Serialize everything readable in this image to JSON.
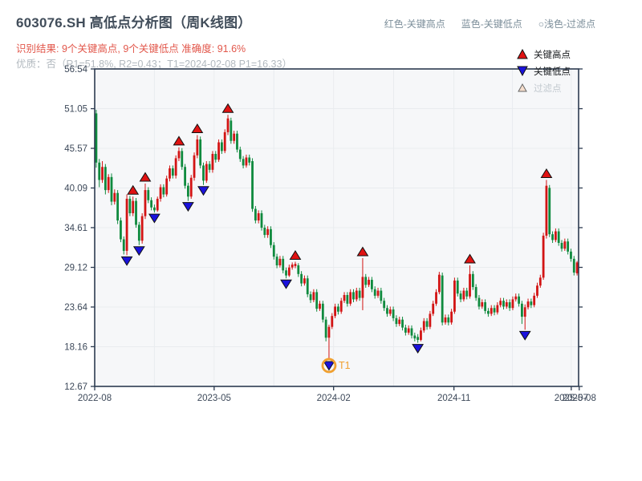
{
  "header": {
    "title": "603076.SH 高低点分析图（周K线图）",
    "note_high": "红色-关键高点",
    "note_low": "蓝色-关键低点",
    "note_filter": "○浅色-过滤点",
    "result_line": "识别结果: 9个关键高点, 9个关键低点  准确度: 91.6%",
    "quality_line": "优质：否（R1=51.8%, R2=0.43；T1=2024-02-08 P1=16.33）"
  },
  "chart_data": {
    "type": "candlestick",
    "symbol": "603076.SH",
    "period": "周K线",
    "ylim": [
      12.67,
      56.54
    ],
    "y_tick_labels": [
      "56.54",
      "51.05",
      "45.57",
      "40.09",
      "34.61",
      "29.12",
      "23.64",
      "18.16",
      "12.67"
    ],
    "x_ticks": [
      {
        "label": "2022-08",
        "week": 0
      },
      {
        "label": "2023-05",
        "week": 39
      },
      {
        "label": "2024-02",
        "week": 78
      },
      {
        "label": "2024-11",
        "week": 117.3
      },
      {
        "label": "2025-07",
        "week": 155.6
      },
      {
        "label": "2025-08",
        "week": 158.2
      }
    ],
    "weeks_total": 158,
    "grid_weeks": [
      19.5,
      39,
      58.5,
      78,
      97.6,
      117.3,
      136.4,
      155.6
    ],
    "candles": [
      [
        50.4,
        50.9,
        42.9,
        43.6
      ],
      [
        43.6,
        44.1,
        40.2,
        41.2
      ],
      [
        41.2,
        43.8,
        40.8,
        43.0
      ],
      [
        43.0,
        43.4,
        39.2,
        39.8
      ],
      [
        39.8,
        42.0,
        39.4,
        41.6
      ],
      [
        41.6,
        42.1,
        37.7,
        38.2
      ],
      [
        38.2,
        39.9,
        37.8,
        39.4
      ],
      [
        39.4,
        39.8,
        35.1,
        35.6
      ],
      [
        35.6,
        36.0,
        32.6,
        33.0
      ],
      [
        33.0,
        33.4,
        30.9,
        31.4
      ],
      [
        31.4,
        39.2,
        30.8,
        38.6
      ],
      [
        38.6,
        39.0,
        36.2,
        36.6
      ],
      [
        36.6,
        38.9,
        36.2,
        38.3
      ],
      [
        38.3,
        38.7,
        34.6,
        35.0
      ],
      [
        35.0,
        35.4,
        32.2,
        32.8
      ],
      [
        32.8,
        36.6,
        32.4,
        36.2
      ],
      [
        36.2,
        40.7,
        35.8,
        39.8
      ],
      [
        39.8,
        40.2,
        38.0,
        38.4
      ],
      [
        38.4,
        38.8,
        37.0,
        37.4
      ],
      [
        37.4,
        37.8,
        36.7,
        37.0
      ],
      [
        37.0,
        38.9,
        36.8,
        38.6
      ],
      [
        38.6,
        40.6,
        38.2,
        40.2
      ],
      [
        40.2,
        40.6,
        38.8,
        39.2
      ],
      [
        39.2,
        41.8,
        38.9,
        41.4
      ],
      [
        41.4,
        43.2,
        41.0,
        42.8
      ],
      [
        42.8,
        43.2,
        41.4,
        41.8
      ],
      [
        41.8,
        44.6,
        41.4,
        44.2
      ],
      [
        44.2,
        45.7,
        43.8,
        45.2
      ],
      [
        45.2,
        45.6,
        42.6,
        43.0
      ],
      [
        43.0,
        43.4,
        40.0,
        40.4
      ],
      [
        40.4,
        40.8,
        38.3,
        38.9
      ],
      [
        38.9,
        41.9,
        38.6,
        41.5
      ],
      [
        41.5,
        45.0,
        41.1,
        44.6
      ],
      [
        44.6,
        47.4,
        44.2,
        46.8
      ],
      [
        46.8,
        47.2,
        42.8,
        43.2
      ],
      [
        43.2,
        43.6,
        40.5,
        41.1
      ],
      [
        41.1,
        43.8,
        40.8,
        43.4
      ],
      [
        43.4,
        43.8,
        42.2,
        42.6
      ],
      [
        42.6,
        45.2,
        42.2,
        44.8
      ],
      [
        44.8,
        45.2,
        43.6,
        44.0
      ],
      [
        44.0,
        46.8,
        43.7,
        46.4
      ],
      [
        46.4,
        46.8,
        44.8,
        45.2
      ],
      [
        45.2,
        48.2,
        44.9,
        47.8
      ],
      [
        47.8,
        50.2,
        47.4,
        49.7
      ],
      [
        49.4,
        49.8,
        46.2,
        46.6
      ],
      [
        46.6,
        48.0,
        46.2,
        47.6
      ],
      [
        47.6,
        48.0,
        45.0,
        45.4
      ],
      [
        45.4,
        45.8,
        43.7,
        44.1
      ],
      [
        44.1,
        44.5,
        42.8,
        43.2
      ],
      [
        43.2,
        44.7,
        42.9,
        44.3
      ],
      [
        44.3,
        44.7,
        43.2,
        43.6
      ],
      [
        43.8,
        44.2,
        36.8,
        37.2
      ],
      [
        37.2,
        37.6,
        35.2,
        35.6
      ],
      [
        35.6,
        37.0,
        35.2,
        36.6
      ],
      [
        36.6,
        37.0,
        34.2,
        34.6
      ],
      [
        34.6,
        35.0,
        33.2,
        33.6
      ],
      [
        33.6,
        34.8,
        33.2,
        34.4
      ],
      [
        34.4,
        34.8,
        31.8,
        32.2
      ],
      [
        32.2,
        32.6,
        30.2,
        30.6
      ],
      [
        30.6,
        31.0,
        29.0,
        29.4
      ],
      [
        29.4,
        30.7,
        29.1,
        30.3
      ],
      [
        30.3,
        30.7,
        28.3,
        28.7
      ],
      [
        28.7,
        29.1,
        27.6,
        28.0
      ],
      [
        28.0,
        29.5,
        27.8,
        29.1
      ],
      [
        29.1,
        29.8,
        28.8,
        29.5
      ],
      [
        29.3,
        29.9,
        29.0,
        29.6
      ],
      [
        29.4,
        29.7,
        27.8,
        28.2
      ],
      [
        28.2,
        28.6,
        26.5,
        26.9
      ],
      [
        26.9,
        28.0,
        26.6,
        27.6
      ],
      [
        27.6,
        28.0,
        25.0,
        25.4
      ],
      [
        25.4,
        25.8,
        24.2,
        24.6
      ],
      [
        24.6,
        26.1,
        24.3,
        25.7
      ],
      [
        25.7,
        26.1,
        23.0,
        23.4
      ],
      [
        23.4,
        24.5,
        23.1,
        24.1
      ],
      [
        24.1,
        24.5,
        21.5,
        21.9
      ],
      [
        21.9,
        22.3,
        18.9,
        19.4
      ],
      [
        19.4,
        21.2,
        16.33,
        20.9
      ],
      [
        20.9,
        22.8,
        20.6,
        22.4
      ],
      [
        22.4,
        24.1,
        22.1,
        23.7
      ],
      [
        23.7,
        24.1,
        22.6,
        23.0
      ],
      [
        23.0,
        24.9,
        22.7,
        24.5
      ],
      [
        24.5,
        25.7,
        24.2,
        25.3
      ],
      [
        25.3,
        25.7,
        23.7,
        24.1
      ],
      [
        24.1,
        26.1,
        23.8,
        25.7
      ],
      [
        25.7,
        26.1,
        24.3,
        24.7
      ],
      [
        24.7,
        26.3,
        24.4,
        25.9
      ],
      [
        25.9,
        26.3,
        24.5,
        24.9
      ],
      [
        24.9,
        30.4,
        23.2,
        27.8
      ],
      [
        27.8,
        28.2,
        26.3,
        26.7
      ],
      [
        26.7,
        27.8,
        26.4,
        27.4
      ],
      [
        27.4,
        27.8,
        25.7,
        26.1
      ],
      [
        26.1,
        26.5,
        24.8,
        25.2
      ],
      [
        25.2,
        26.3,
        24.9,
        25.9
      ],
      [
        25.9,
        26.3,
        24.1,
        24.5
      ],
      [
        24.5,
        24.9,
        23.1,
        23.5
      ],
      [
        23.5,
        23.9,
        22.3,
        22.7
      ],
      [
        22.7,
        23.7,
        22.4,
        23.3
      ],
      [
        23.3,
        23.7,
        21.7,
        22.1
      ],
      [
        22.1,
        22.5,
        20.9,
        21.3
      ],
      [
        21.3,
        22.3,
        21.0,
        21.9
      ],
      [
        21.9,
        22.3,
        20.4,
        20.8
      ],
      [
        20.8,
        21.2,
        19.7,
        20.1
      ],
      [
        20.1,
        21.1,
        19.8,
        20.7
      ],
      [
        20.7,
        21.1,
        19.3,
        19.7
      ],
      [
        19.7,
        20.1,
        18.9,
        19.3
      ],
      [
        19.5,
        19.9,
        18.7,
        19.1
      ],
      [
        19.1,
        20.8,
        18.9,
        20.4
      ],
      [
        20.4,
        22.1,
        20.1,
        21.7
      ],
      [
        21.7,
        22.1,
        20.5,
        20.9
      ],
      [
        20.9,
        23.1,
        20.6,
        22.7
      ],
      [
        22.7,
        24.5,
        22.4,
        24.1
      ],
      [
        24.1,
        26.1,
        23.8,
        25.7
      ],
      [
        25.7,
        28.5,
        25.4,
        28.1
      ],
      [
        28.0,
        28.4,
        21.1,
        21.5
      ],
      [
        21.5,
        22.6,
        21.2,
        22.2
      ],
      [
        22.2,
        22.6,
        21.1,
        21.5
      ],
      [
        21.5,
        23.4,
        21.2,
        23.0
      ],
      [
        23.0,
        27.7,
        22.7,
        27.3
      ],
      [
        27.3,
        27.7,
        25.1,
        25.5
      ],
      [
        25.5,
        25.9,
        24.3,
        24.7
      ],
      [
        24.7,
        26.3,
        24.4,
        25.9
      ],
      [
        25.9,
        26.3,
        24.7,
        25.1
      ],
      [
        25.1,
        29.4,
        24.8,
        28.2
      ],
      [
        28.2,
        28.6,
        26.0,
        26.4
      ],
      [
        26.4,
        26.8,
        24.5,
        24.9
      ],
      [
        24.9,
        25.3,
        23.3,
        23.7
      ],
      [
        23.7,
        24.7,
        23.4,
        24.3
      ],
      [
        24.3,
        24.7,
        22.7,
        23.1
      ],
      [
        23.1,
        23.5,
        22.3,
        22.7
      ],
      [
        22.7,
        23.9,
        22.4,
        23.5
      ],
      [
        23.5,
        23.9,
        22.5,
        22.9
      ],
      [
        22.9,
        24.3,
        22.6,
        23.9
      ],
      [
        23.9,
        24.9,
        23.6,
        24.5
      ],
      [
        24.5,
        24.9,
        23.3,
        23.7
      ],
      [
        23.7,
        24.7,
        23.4,
        24.3
      ],
      [
        24.3,
        24.7,
        23.1,
        23.5
      ],
      [
        23.5,
        25.1,
        23.2,
        24.7
      ],
      [
        24.7,
        25.5,
        24.4,
        25.1
      ],
      [
        25.1,
        25.5,
        23.7,
        24.1
      ],
      [
        24.1,
        24.5,
        21.3,
        22.3
      ],
      [
        22.3,
        24.0,
        20.5,
        23.6
      ],
      [
        23.6,
        24.8,
        23.3,
        24.4
      ],
      [
        24.4,
        24.8,
        23.5,
        23.9
      ],
      [
        23.9,
        25.6,
        23.6,
        25.2
      ],
      [
        25.2,
        27.0,
        24.9,
        26.6
      ],
      [
        26.6,
        28.1,
        26.3,
        27.7
      ],
      [
        27.7,
        33.9,
        27.4,
        33.5
      ],
      [
        33.5,
        41.2,
        33.1,
        40.4
      ],
      [
        40.1,
        40.5,
        33.3,
        33.7
      ],
      [
        33.7,
        34.1,
        32.5,
        32.9
      ],
      [
        32.9,
        34.5,
        32.6,
        34.1
      ],
      [
        34.1,
        34.5,
        32.1,
        32.5
      ],
      [
        32.5,
        32.9,
        31.3,
        31.7
      ],
      [
        31.7,
        33.1,
        31.4,
        32.7
      ],
      [
        32.7,
        33.1,
        30.9,
        31.3
      ],
      [
        31.3,
        31.7,
        29.9,
        30.3
      ],
      [
        30.3,
        30.7,
        28.0,
        28.4
      ],
      [
        28.3,
        30.0,
        28.0,
        29.8
      ]
    ],
    "key_highs": [
      {
        "week": 12,
        "price": 38.9
      },
      {
        "week": 16,
        "price": 40.7
      },
      {
        "week": 27,
        "price": 45.7
      },
      {
        "week": 33,
        "price": 47.4
      },
      {
        "week": 43,
        "price": 50.2
      },
      {
        "week": 65,
        "price": 29.9
      },
      {
        "week": 87,
        "price": 30.4
      },
      {
        "week": 122,
        "price": 29.4
      },
      {
        "week": 147,
        "price": 41.2
      }
    ],
    "key_lows": [
      {
        "week": 10,
        "price": 30.8
      },
      {
        "week": 14,
        "price": 32.2
      },
      {
        "week": 19,
        "price": 36.7
      },
      {
        "week": 30,
        "price": 38.3
      },
      {
        "week": 35,
        "price": 40.5
      },
      {
        "week": 62,
        "price": 27.6
      },
      {
        "week": 76,
        "price": 16.33
      },
      {
        "week": 105,
        "price": 18.7
      },
      {
        "week": 140,
        "price": 20.5
      }
    ],
    "t1": {
      "label": "T1",
      "week": 76,
      "price": 16.33,
      "date": "2024-02-08"
    },
    "legend": [
      {
        "label": "关键高点",
        "type": "key-high"
      },
      {
        "label": "关键低点",
        "type": "key-low"
      },
      {
        "label": "过滤点",
        "type": "filtered"
      }
    ],
    "colors": {
      "up": "#d21414",
      "down": "#0f8a3e",
      "key_high": "#e01212",
      "key_low": "#1a12dd",
      "filtered_fill": "#f5ddcc",
      "filtered_edge": "#666666",
      "t1": "#f0a030",
      "grid": "#e9ecef",
      "axis": "#2c3b50",
      "plot_bg": "#f6f7f9",
      "label": "#3c4859"
    }
  }
}
